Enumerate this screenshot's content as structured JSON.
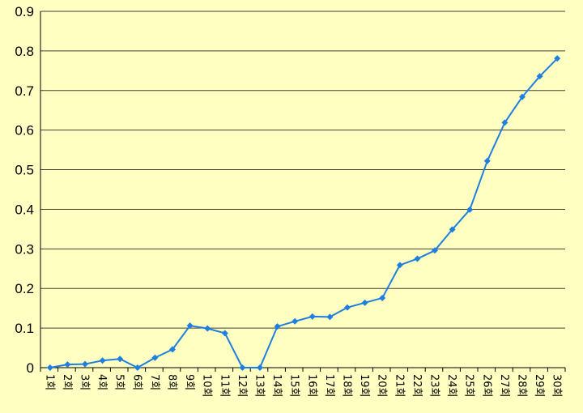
{
  "colors": {
    "background": "#FFFFC2",
    "series": "#1E7FE0",
    "grid": "#000000"
  },
  "chart_data": {
    "type": "line",
    "title": "",
    "xlabel": "",
    "ylabel": "",
    "grid": "horizontal",
    "ylim": [
      0,
      0.9
    ],
    "yticks": [
      "0",
      "0.1",
      "0.2",
      "0.3",
      "0.4",
      "0.5",
      "0.6",
      "0.7",
      "0.8",
      "0.9"
    ],
    "categories": [
      "1회",
      "2회",
      "3회",
      "4회",
      "5회",
      "6회",
      "7회",
      "8회",
      "9회",
      "10회",
      "11회",
      "12회",
      "13회",
      "14회",
      "15회",
      "16회",
      "17회",
      "18회",
      "19회",
      "20회",
      "21회",
      "22회",
      "23회",
      "24회",
      "25회",
      "26회",
      "27회",
      "28회",
      "29회",
      "30회"
    ],
    "series": [
      {
        "marker": "diamond",
        "values": [
          0.0,
          0.008,
          0.009,
          0.018,
          0.022,
          0.0,
          0.025,
          0.046,
          0.106,
          0.099,
          0.087,
          0.0,
          0.0,
          0.104,
          0.117,
          0.129,
          0.128,
          0.152,
          0.164,
          0.176,
          0.259,
          0.275,
          0.296,
          0.349,
          0.399,
          0.522,
          0.619,
          0.684,
          0.736,
          0.781
        ]
      }
    ]
  }
}
